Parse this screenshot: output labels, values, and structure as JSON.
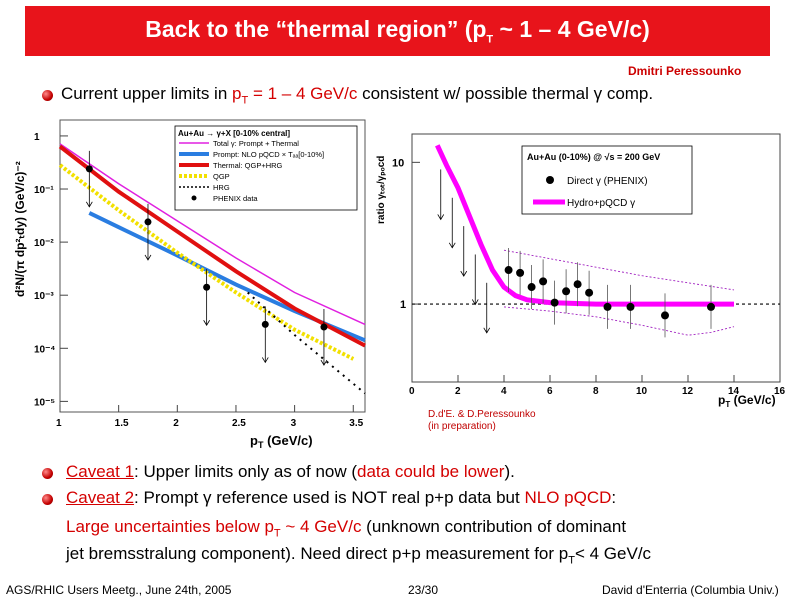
{
  "slide": {
    "title": "Back to the “thermal region” (p",
    "title_sub": "T",
    "title_end": " ~ 1 – 4 GeV/c)",
    "author": "Dmitri Peressounko"
  },
  "bullet1": {
    "a": "Current upper limits in ",
    "b": "p",
    "b_sub": "T",
    "c": " = 1 – 4 GeV/c",
    "d": " consistent w/ possible thermal γ comp."
  },
  "left_plot": {
    "ylabel": "d²N/(π dp²ₜdy) (GeV/c)⁻²",
    "xlabel": "p",
    "xlabel_sub": "T",
    "xlabel_end": " (GeV/c)",
    "xticks": [
      "1",
      "1.5",
      "2",
      "2.5",
      "3",
      "3.5"
    ],
    "yticks": [
      "1",
      "10⁻¹",
      "10⁻²",
      "10⁻³",
      "10⁻⁴",
      "10⁻⁵"
    ],
    "legend_title": "Au+Au → γ+X   [0-10% central]",
    "legend": [
      {
        "label": "Total γ: Prompt + Thermal",
        "color": "#e020e0"
      },
      {
        "label": "Prompt: NLO pQCD × Tₐₐ[0-10%]",
        "color": "#2a7de1"
      },
      {
        "label": "Thermal: QGP+HRG",
        "color": "#e01010"
      },
      {
        "label": "QGP",
        "color": "#f2e000"
      },
      {
        "label": "HRG",
        "color": "#000000"
      },
      {
        "label": "PHENIX data",
        "color": "#000000"
      }
    ]
  },
  "right_plot": {
    "ylabel": "ratio γₜₒₜ/γₚₒcd",
    "xlabel": "p",
    "xlabel_sub": "T",
    "xlabel_end": " (GeV/c)",
    "xticks": [
      "0",
      "2",
      "4",
      "6",
      "8",
      "10",
      "12",
      "14",
      "16"
    ],
    "yticks": [
      "10",
      "1"
    ],
    "legend_title": "Au+Au (0-10%) @ √s = 200 GeV",
    "legend_direct": "Direct γ (PHENIX)",
    "legend_hydro": "Hydro+pQCD γ",
    "credit_1": "D.d'E. & D.Peressounko",
    "credit_2": "(in preparation)"
  },
  "caveat1": {
    "label": "Caveat 1",
    "text": ": Upper limits only as of now (",
    "red": "data could be lower",
    "end": ")."
  },
  "caveat2": {
    "label": "Caveat 2",
    "text": ": Prompt γ reference used is NOT real p+p data but ",
    "red": "NLO pQCD",
    "end": ":",
    "line2_red": "Large uncertainties below p",
    "line2_red_sub": "T",
    "line2_red_end": " ~ 4 GeV/c",
    "line2_rest": " (unknown contribution of dominant",
    "line3": "jet bremsstralung component). Need direct p+p measurement for p",
    "line3_sub": "T",
    "line3_end": "< 4 GeV/c"
  },
  "footer": {
    "left": "AGS/RHIC Users Meetg., June 24th, 2005",
    "center": "23/30",
    "right": "David d'Enterria (Columbia Univ.)"
  },
  "colors": {
    "banner": "#e8141b",
    "accent_red": "#d40000",
    "hydro": "#ff00ff",
    "total": "#e020e0",
    "prompt": "#2a7de1",
    "thermal": "#e01010",
    "qgp": "#f2e000"
  }
}
